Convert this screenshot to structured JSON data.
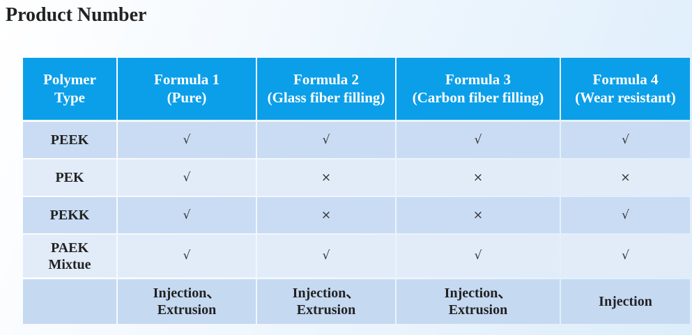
{
  "header": {
    "title": "Product Number"
  },
  "table": {
    "columns": [
      [
        "Polymer",
        "Type"
      ],
      [
        "Formula 1",
        "(Pure)"
      ],
      [
        "Formula 2",
        "(Glass fiber filling)"
      ],
      [
        "Formula 3",
        "(Carbon fiber filling)"
      ],
      [
        "Formula 4",
        "(Wear resistant)"
      ]
    ],
    "rows": [
      {
        "polymer": [
          "PEEK"
        ],
        "cells": [
          "√",
          "√",
          "√",
          "√"
        ]
      },
      {
        "polymer": [
          "PEK"
        ],
        "cells": [
          "√",
          "×",
          "×",
          "×"
        ]
      },
      {
        "polymer": [
          "PEKK"
        ],
        "cells": [
          "√",
          "×",
          "×",
          "√"
        ]
      },
      {
        "polymer": [
          "PAEK",
          "Mixtue"
        ],
        "cells": [
          "√",
          "√",
          "√",
          "√"
        ]
      }
    ],
    "processing": [
      [
        "Injection、",
        "Extrusion"
      ],
      [
        "Injection、",
        "Extrusion"
      ],
      [
        "Injection、",
        "Extrusion"
      ],
      [
        "Injection"
      ]
    ]
  }
}
